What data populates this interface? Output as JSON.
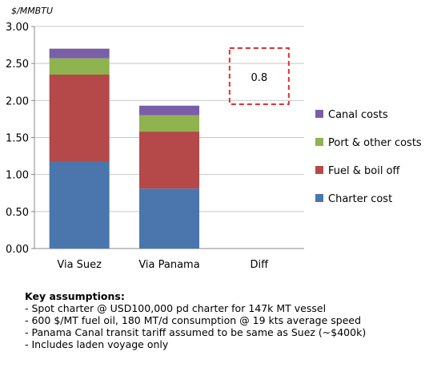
{
  "chart_data": {
    "type": "bar",
    "stacked": true,
    "unit_label": "$/MMBTU",
    "categories": [
      "Via Suez",
      "Via Panama",
      "Diff"
    ],
    "ylim": [
      0,
      3.0
    ],
    "yticks": [
      "0.00",
      "0.50",
      "1.00",
      "1.50",
      "2.00",
      "2.50",
      "3.00"
    ],
    "series": [
      {
        "name": "Charter cost",
        "color": "#4a76ad",
        "values": [
          1.17,
          0.81,
          null
        ]
      },
      {
        "name": "Fuel & boil off",
        "color": "#b54848",
        "values": [
          1.18,
          0.77,
          null
        ]
      },
      {
        "name": "Port & other costs",
        "color": "#8fb34e",
        "values": [
          0.22,
          0.22,
          null
        ]
      },
      {
        "name": "Canal costs",
        "color": "#7a5ea8",
        "values": [
          0.13,
          0.13,
          null
        ]
      }
    ],
    "legend_order": [
      "Canal costs",
      "Port & other costs",
      "Fuel & boil off",
      "Charter cost"
    ],
    "legend_position": "right",
    "annotation": {
      "category": "Diff",
      "label": "0.8",
      "style": "dashed-red-box",
      "color": "#e03030"
    },
    "gridlines": true
  },
  "notes": {
    "heading": "Key assumptions:",
    "lines": [
      "- Spot charter @ USD100,000 pd charter for 147k MT vessel",
      "- 600 $/MT fuel oil, 180 MT/d consumption @ 19 kts average speed",
      "- Panama Canal transit tariff assumed to be same as Suez (~$400k)",
      "- Includes laden voyage only"
    ]
  }
}
